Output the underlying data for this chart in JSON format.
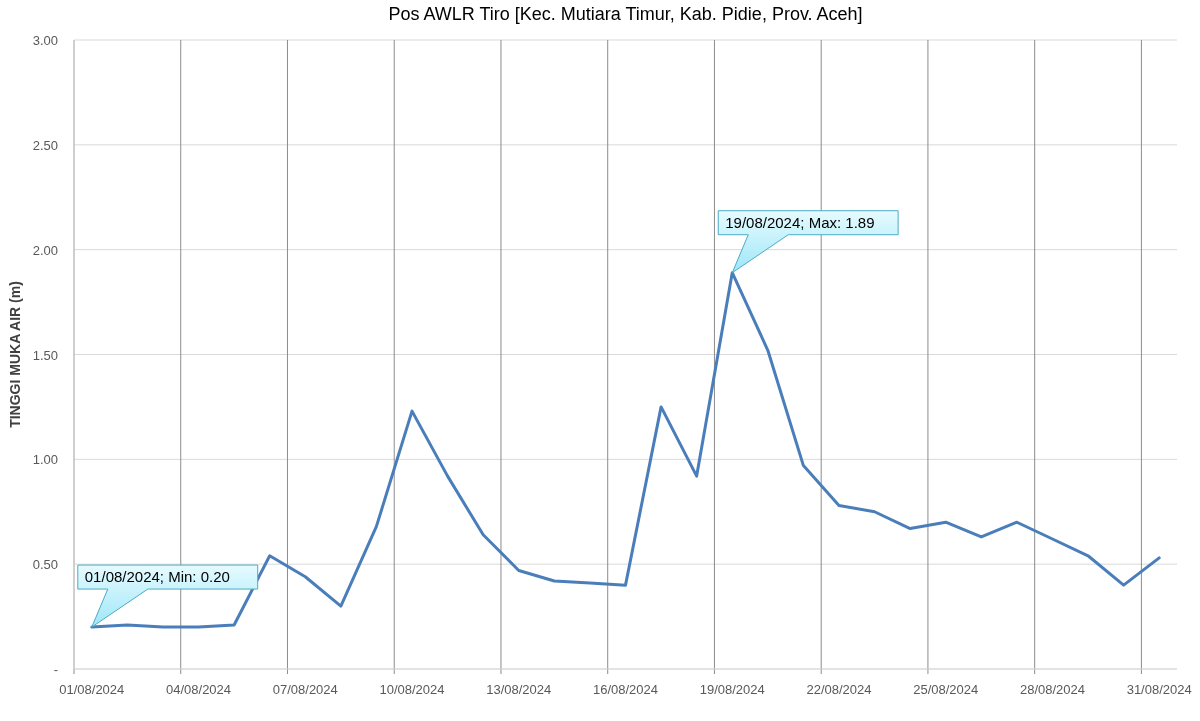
{
  "chart_data": {
    "type": "line",
    "title": "Pos AWLR Tiro [Kec. Mutiara Timur, Kab. Pidie, Prov. Aceh]",
    "ylabel": "TINGGI MUKA AIR (m)",
    "x": [
      "2024-08-01",
      "2024-08-02",
      "2024-08-03",
      "2024-08-04",
      "2024-08-05",
      "2024-08-06",
      "2024-08-07",
      "2024-08-08",
      "2024-08-09",
      "2024-08-10",
      "2024-08-11",
      "2024-08-12",
      "2024-08-13",
      "2024-08-14",
      "2024-08-15",
      "2024-08-16",
      "2024-08-17",
      "2024-08-18",
      "2024-08-19",
      "2024-08-20",
      "2024-08-21",
      "2024-08-22",
      "2024-08-23",
      "2024-08-24",
      "2024-08-25",
      "2024-08-26",
      "2024-08-27",
      "2024-08-28",
      "2024-08-29",
      "2024-08-30",
      "2024-08-31"
    ],
    "series": [
      {
        "color": "#4a7ebb",
        "values": [
          0.2,
          0.21,
          0.2,
          0.2,
          0.21,
          0.54,
          0.44,
          0.3,
          0.68,
          1.23,
          0.92,
          0.64,
          0.47,
          0.42,
          0.41,
          0.4,
          1.25,
          0.92,
          1.89,
          1.52,
          0.97,
          0.78,
          0.75,
          0.67,
          0.7,
          0.63,
          0.7,
          0.62,
          0.54,
          0.4,
          0.53
        ]
      }
    ],
    "xlim": [
      "2024-07-31T12:00",
      "2024-08-31T12:00"
    ],
    "xticks": [
      {
        "value": "2024-08-01",
        "label": "01/08/2024"
      },
      {
        "value": "2024-08-04",
        "label": "04/08/2024"
      },
      {
        "value": "2024-08-07",
        "label": "07/08/2024"
      },
      {
        "value": "2024-08-10",
        "label": "10/08/2024"
      },
      {
        "value": "2024-08-13",
        "label": "13/08/2024"
      },
      {
        "value": "2024-08-16",
        "label": "16/08/2024"
      },
      {
        "value": "2024-08-19",
        "label": "19/08/2024"
      },
      {
        "value": "2024-08-22",
        "label": "22/08/2024"
      },
      {
        "value": "2024-08-25",
        "label": "25/08/2024"
      },
      {
        "value": "2024-08-28",
        "label": "28/08/2024"
      },
      {
        "value": "2024-08-31",
        "label": "31/08/2024"
      }
    ],
    "ylim": [
      0,
      3
    ],
    "yticks": [
      {
        "value": 0,
        "label": "-"
      },
      {
        "value": 0.5,
        "label": "0.50"
      },
      {
        "value": 1,
        "label": "1.00"
      },
      {
        "value": 1.5,
        "label": "1.50"
      },
      {
        "value": 2,
        "label": "2.00"
      },
      {
        "value": 2.5,
        "label": "2.50"
      },
      {
        "value": 3,
        "label": "3.00"
      }
    ],
    "grid": true,
    "marker": "none",
    "line_style": "solid",
    "annotations": [
      {
        "text": "01/08/2024; Min: 0.20",
        "x": "2024-08-01",
        "y": 0.2
      },
      {
        "text": "19/08/2024; Max: 1.89",
        "x": "2024-08-19",
        "y": 1.89
      }
    ]
  }
}
